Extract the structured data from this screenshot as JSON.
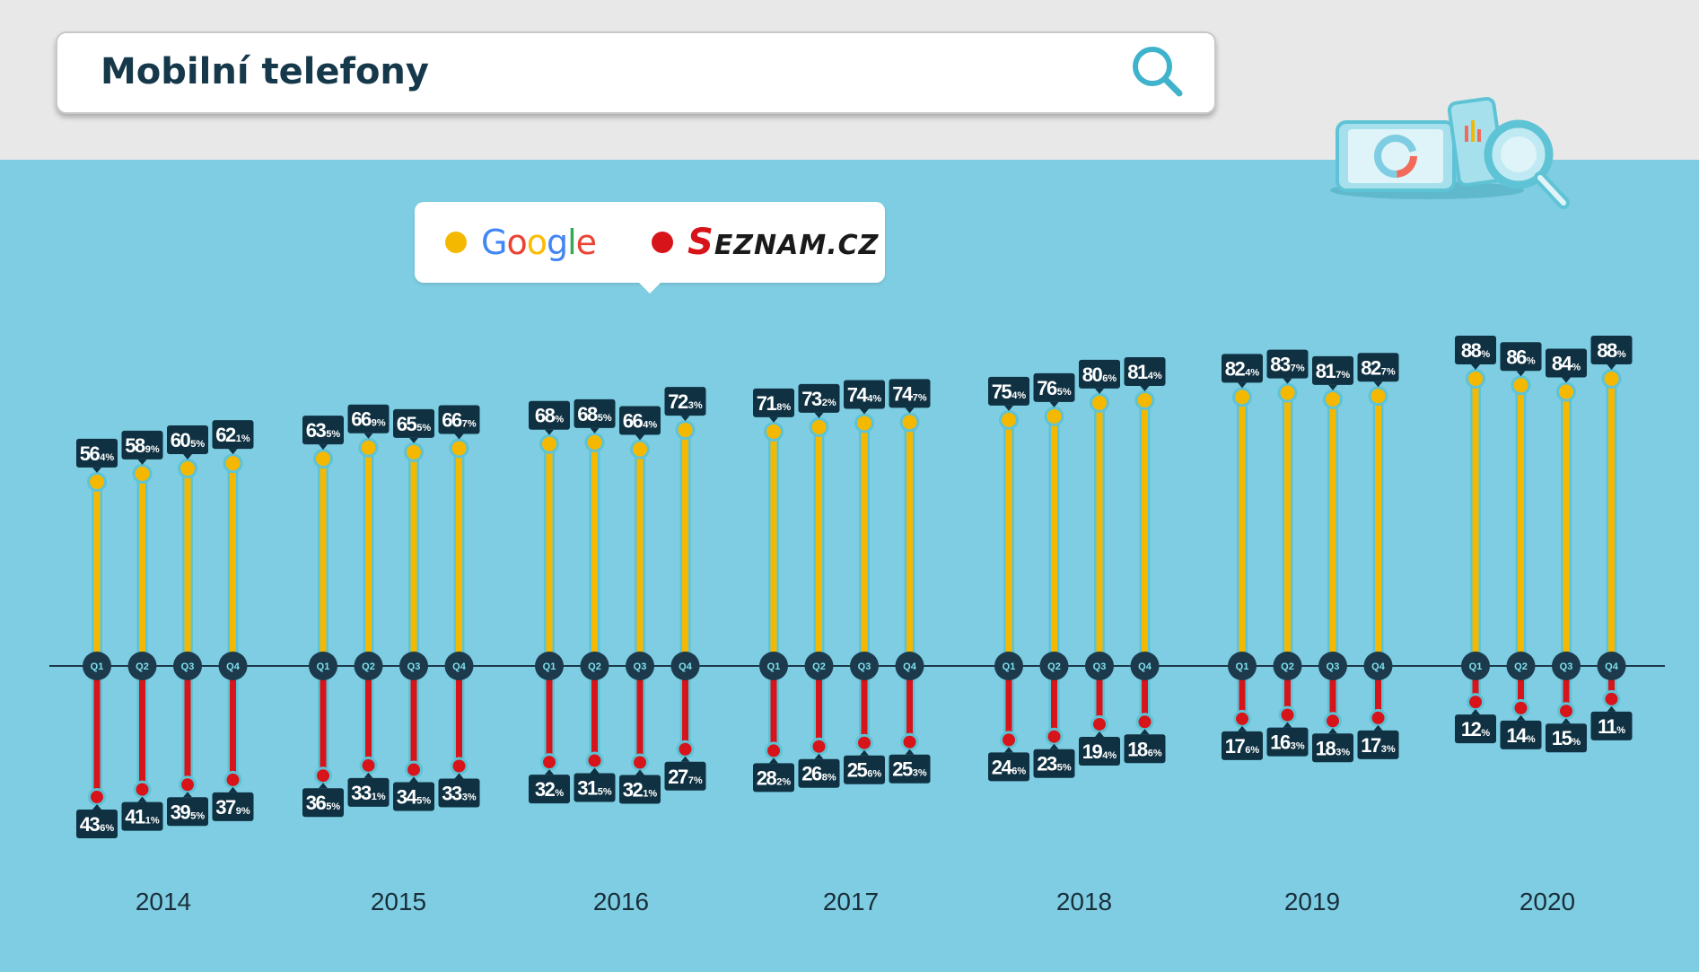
{
  "search": {
    "query": "Mobilní telefony"
  },
  "legend": {
    "google": {
      "label": "Google",
      "color": "#f5b800"
    },
    "seznam": {
      "label": "SEZNAM.CZ",
      "color": "#d7141a"
    }
  },
  "colors": {
    "axis": "#1c3a4c",
    "label_bg": "#0f3142",
    "label_text": "#ffffff",
    "track": "#5fc3d6"
  },
  "chart_data": {
    "type": "bar",
    "title": "",
    "quarters": [
      "Q1",
      "Q2",
      "Q3",
      "Q4"
    ],
    "years": [
      "2014",
      "2015",
      "2016",
      "2017",
      "2018",
      "2019",
      "2020"
    ],
    "ylim": [
      -50,
      100
    ],
    "series": [
      {
        "name": "Google",
        "values": [
          [
            56.4,
            58.9,
            60.5,
            62.1
          ],
          [
            63.5,
            66.9,
            65.5,
            66.7
          ],
          [
            68,
            68.5,
            66.4,
            72.3
          ],
          [
            71.8,
            73.2,
            74.4,
            74.7
          ],
          [
            75.4,
            76.5,
            80.6,
            81.4
          ],
          [
            82.4,
            83.7,
            81.7,
            82.7
          ],
          [
            88,
            86,
            84,
            88
          ]
        ],
        "labels": [
          [
            [
              "56",
              "4%"
            ],
            [
              "58",
              "9%"
            ],
            [
              "60",
              "5%"
            ],
            [
              "62",
              "1%"
            ]
          ],
          [
            [
              "63",
              "5%"
            ],
            [
              "66",
              "9%"
            ],
            [
              "65",
              "5%"
            ],
            [
              "66",
              "7%"
            ]
          ],
          [
            [
              "68",
              "%"
            ],
            [
              "68",
              "5%"
            ],
            [
              "66",
              "4%"
            ],
            [
              "72",
              "3%"
            ]
          ],
          [
            [
              "71",
              "8%"
            ],
            [
              "73",
              "2%"
            ],
            [
              "74",
              "4%"
            ],
            [
              "74",
              "7%"
            ]
          ],
          [
            [
              "75",
              "4%"
            ],
            [
              "76",
              "5%"
            ],
            [
              "80",
              "6%"
            ],
            [
              "81",
              "4%"
            ]
          ],
          [
            [
              "82",
              "4%"
            ],
            [
              "83",
              "7%"
            ],
            [
              "81",
              "7%"
            ],
            [
              "82",
              "7%"
            ]
          ],
          [
            [
              "88",
              "%"
            ],
            [
              "86",
              "%"
            ],
            [
              "84",
              "%"
            ],
            [
              "88",
              "%"
            ]
          ]
        ]
      },
      {
        "name": "SEZNAM.CZ",
        "values": [
          [
            43.6,
            41.1,
            39.5,
            37.9
          ],
          [
            36.5,
            33.1,
            34.5,
            33.3
          ],
          [
            32,
            31.5,
            32.1,
            27.7
          ],
          [
            28.2,
            26.8,
            25.6,
            25.3
          ],
          [
            24.6,
            23.5,
            19.4,
            18.6
          ],
          [
            17.6,
            16.3,
            18.3,
            17.3
          ],
          [
            12,
            14,
            15,
            11
          ]
        ],
        "labels": [
          [
            [
              "43",
              "6%"
            ],
            [
              "41",
              "1%"
            ],
            [
              "39",
              "5%"
            ],
            [
              "37",
              "9%"
            ]
          ],
          [
            [
              "36",
              "5%"
            ],
            [
              "33",
              "1%"
            ],
            [
              "34",
              "5%"
            ],
            [
              "33",
              "3%"
            ]
          ],
          [
            [
              "32",
              "%"
            ],
            [
              "31",
              "5%"
            ],
            [
              "32",
              "1%"
            ],
            [
              "27",
              "7%"
            ]
          ],
          [
            [
              "28",
              "2%"
            ],
            [
              "26",
              "8%"
            ],
            [
              "25",
              "6%"
            ],
            [
              "25",
              "3%"
            ]
          ],
          [
            [
              "24",
              "6%"
            ],
            [
              "23",
              "5%"
            ],
            [
              "19",
              "4%"
            ],
            [
              "18",
              "6%"
            ]
          ],
          [
            [
              "17",
              "6%"
            ],
            [
              "16",
              "3%"
            ],
            [
              "18",
              "3%"
            ],
            [
              "17",
              "3%"
            ]
          ],
          [
            [
              "12",
              "%"
            ],
            [
              "14",
              "%"
            ],
            [
              "15",
              "%"
            ],
            [
              "11",
              "%"
            ]
          ]
        ]
      }
    ]
  }
}
